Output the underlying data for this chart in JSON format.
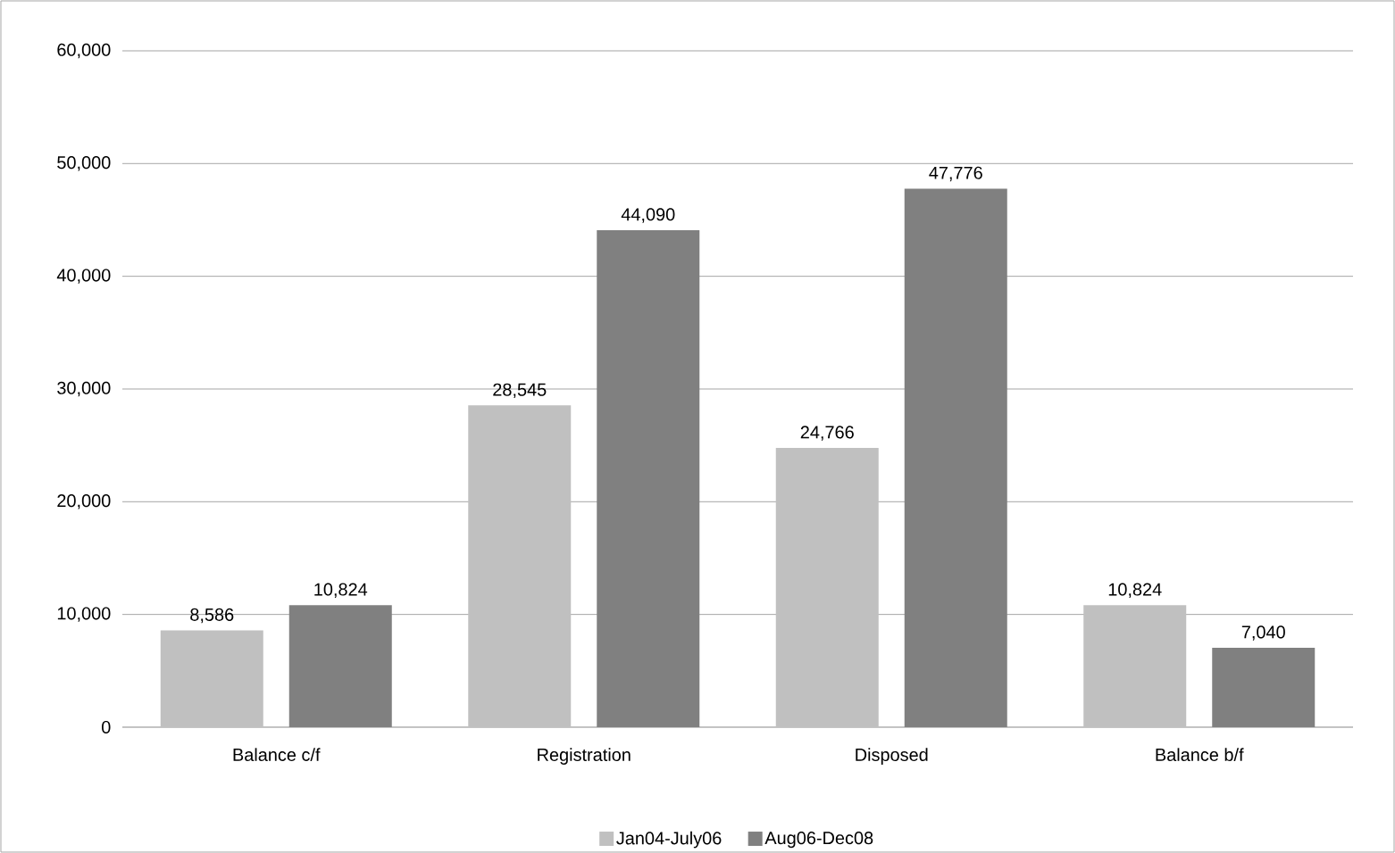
{
  "chart_data": {
    "type": "bar",
    "categories": [
      "Balance c/f",
      "Registration",
      "Disposed",
      "Balance b/f"
    ],
    "series": [
      {
        "name": "Jan04-July06",
        "color": "#c0c0c0",
        "values": [
          8586,
          28545,
          24766,
          10824
        ],
        "value_labels": [
          "8,586",
          "28,545",
          "24,766",
          "10,824"
        ]
      },
      {
        "name": "Aug06-Dec08",
        "color": "#808080",
        "values": [
          10824,
          44090,
          47776,
          7040
        ],
        "value_labels": [
          "10,824",
          "44,090",
          "47,776",
          "7,040"
        ]
      }
    ],
    "ylim": [
      0,
      60000
    ],
    "yticks": [
      0,
      {
        "value": 10000,
        "label": "10,000"
      },
      {
        "value": 20000,
        "label": "20,000"
      },
      {
        "value": 30000,
        "label": "30,000"
      },
      {
        "value": 40000,
        "label": "40,000"
      },
      {
        "value": 50000,
        "label": "50,000"
      },
      {
        "value": 60000,
        "label": "60,000"
      }
    ],
    "grid": "y",
    "legend": "bottom"
  }
}
